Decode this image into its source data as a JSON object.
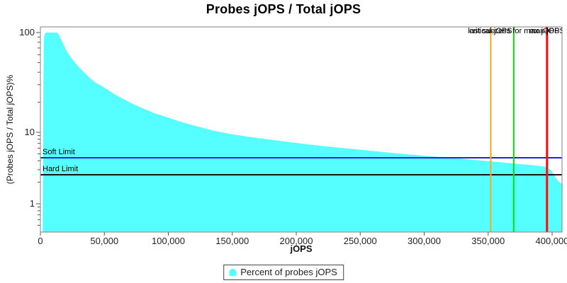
{
  "chart_data": {
    "type": "area",
    "title": "Probes jOPS / Total jOPS",
    "xlabel": "jOPS",
    "ylabel": "(Probes jOPS / Total jOPS)%",
    "yscale": "log",
    "grid": false,
    "legend_position": "bottom",
    "xlim": [
      0,
      407800
    ],
    "ylim": [
      0.4,
      114
    ],
    "xticks": [
      {
        "value": 0,
        "label": "0"
      },
      {
        "value": 50000,
        "label": "50,000"
      },
      {
        "value": 100000,
        "label": "100,000"
      },
      {
        "value": 150000,
        "label": "150,000"
      },
      {
        "value": 200000,
        "label": "200,000"
      },
      {
        "value": 250000,
        "label": "250,000"
      },
      {
        "value": 300000,
        "label": "300,000"
      },
      {
        "value": 350000,
        "label": "350,000"
      },
      {
        "value": 400000,
        "label": "400,000"
      }
    ],
    "yticks": [
      {
        "value": 100,
        "label": "100"
      },
      {
        "value": 10,
        "label": "10"
      },
      {
        "value": 1,
        "label": "1"
      }
    ],
    "yminor": [
      90,
      80,
      70,
      60,
      50,
      40,
      30,
      20,
      9,
      8,
      7,
      6,
      5,
      4,
      3,
      2,
      0.9,
      0.8,
      0.7,
      0.6,
      0.5
    ],
    "series": [
      {
        "name": "Percent of probes jOPS",
        "color": "#55FFFF",
        "points": [
          [
            1800,
            0.45
          ],
          [
            2300,
            30
          ],
          [
            2600,
            75
          ],
          [
            3000,
            93
          ],
          [
            3600,
            98
          ],
          [
            4500,
            100
          ],
          [
            13000,
            100
          ],
          [
            14500,
            95
          ],
          [
            16000,
            86
          ],
          [
            18000,
            76
          ],
          [
            20000,
            67
          ],
          [
            22000,
            61
          ],
          [
            24000,
            56
          ],
          [
            27000,
            50
          ],
          [
            30000,
            45
          ],
          [
            34000,
            40
          ],
          [
            38000,
            35.5
          ],
          [
            43000,
            31.5
          ],
          [
            48000,
            29
          ],
          [
            52000,
            27
          ],
          [
            58000,
            24
          ],
          [
            65000,
            21.5
          ],
          [
            72000,
            19.3
          ],
          [
            80000,
            17.4
          ],
          [
            90000,
            15.4
          ],
          [
            100000,
            14
          ],
          [
            110000,
            12.7
          ],
          [
            122000,
            11.5
          ],
          [
            135000,
            10.4
          ],
          [
            148000,
            9.5
          ],
          [
            162000,
            8.7
          ],
          [
            177000,
            8.0
          ],
          [
            192000,
            7.4
          ],
          [
            207000,
            6.85
          ],
          [
            222000,
            6.4
          ],
          [
            237000,
            6.0
          ],
          [
            252000,
            5.65
          ],
          [
            267000,
            5.3
          ],
          [
            282000,
            5.0
          ],
          [
            297000,
            4.75
          ],
          [
            312000,
            4.5
          ],
          [
            327000,
            4.3
          ],
          [
            342000,
            4.05
          ],
          [
            357000,
            3.85
          ],
          [
            370000,
            3.65
          ],
          [
            382000,
            3.5
          ],
          [
            392000,
            3.35
          ],
          [
            396000,
            3.25
          ],
          [
            398500,
            3.0
          ],
          [
            400500,
            2.7
          ],
          [
            402500,
            2.35
          ],
          [
            404500,
            2.1
          ],
          [
            406500,
            1.95
          ],
          [
            407700,
            1.9
          ]
        ]
      }
    ],
    "annotations": {
      "hlines": [
        {
          "label": "Soft Limit",
          "percent": 4.4,
          "color": "#2222DD",
          "width": 2
        },
        {
          "label": "Hard Limit",
          "percent": 2.55,
          "color": "#151515",
          "width": 2
        }
      ],
      "vlines": [
        {
          "label": "critical-jOPS",
          "jops": 352000,
          "color": "#FFA520",
          "width": 2
        },
        {
          "label": "last success for max-jOPS",
          "jops": 370000,
          "color": "#00E400",
          "width": 2
        },
        {
          "label": "max-jOPS",
          "jops": 396000,
          "color": "#EE1111",
          "width": 3
        }
      ]
    }
  },
  "colors": {
    "plot_border": "#808080",
    "tick": "#555555",
    "background": "#ffffff"
  }
}
